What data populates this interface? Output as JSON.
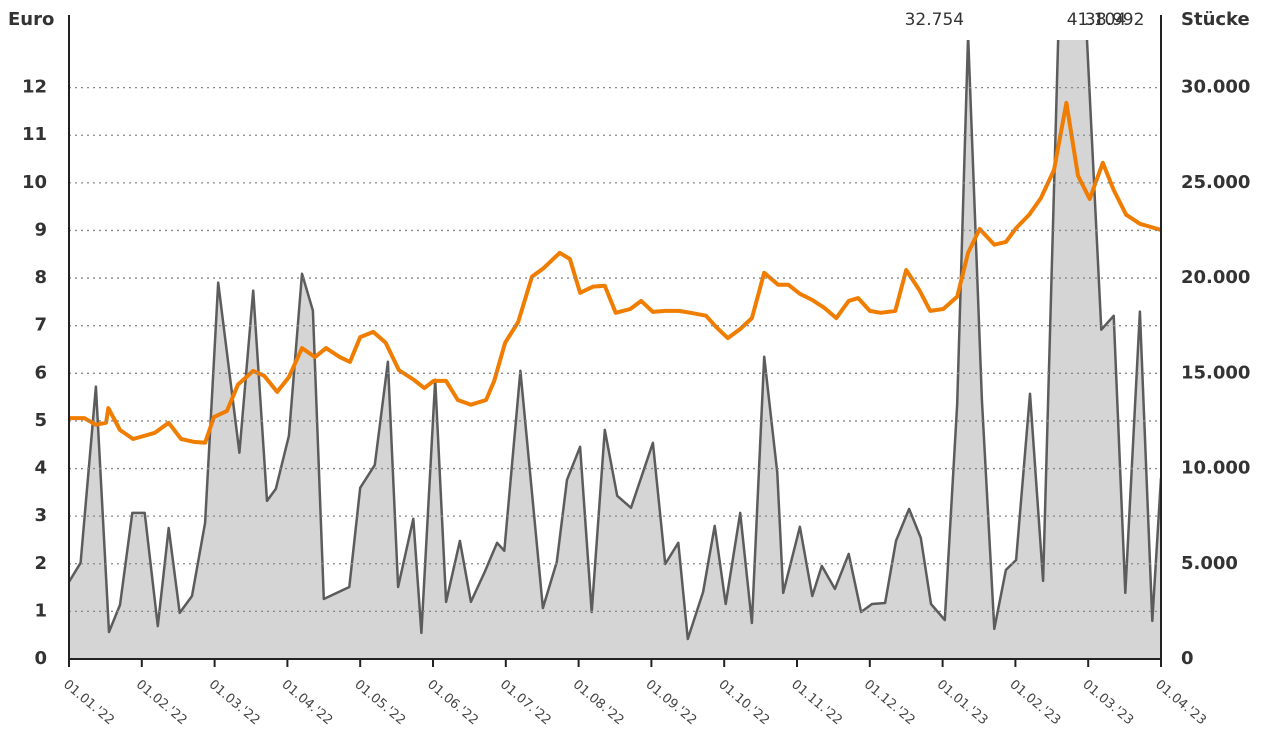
{
  "chart_data": {
    "type": "line-area",
    "y_label": "Euro",
    "y2_label": "Stücke",
    "xlim": [
      0,
      15
    ],
    "xticks": [
      {
        "value": 0,
        "label": "01.01.'22"
      },
      {
        "value": 1,
        "label": "01.02.'22"
      },
      {
        "value": 2,
        "label": "01.03.'22"
      },
      {
        "value": 3,
        "label": "01.04.'22"
      },
      {
        "value": 4,
        "label": "01.05.'22"
      },
      {
        "value": 5,
        "label": "01.06.'22"
      },
      {
        "value": 6,
        "label": "01.07.'22"
      },
      {
        "value": 7,
        "label": "01.08.'22"
      },
      {
        "value": 8,
        "label": "01.09.'22"
      },
      {
        "value": 9,
        "label": "01.10.'22"
      },
      {
        "value": 10,
        "label": "01.11.'22"
      },
      {
        "value": 11,
        "label": "01.12.'22"
      },
      {
        "value": 12,
        "label": "01.01.'23"
      },
      {
        "value": 13,
        "label": "01.02.'23"
      },
      {
        "value": 14,
        "label": "01.03.'23"
      },
      {
        "value": 15,
        "label": "01.04.'23"
      }
    ],
    "ylim": [
      0,
      13
    ],
    "yticks": [
      0,
      1,
      2,
      3,
      4,
      5,
      6,
      7,
      8,
      9,
      10,
      11,
      12
    ],
    "y2lim": [
      0,
      32500
    ],
    "y2ticks": [
      0,
      {
        "value": 5000,
        "label": "5.000"
      },
      {
        "value": 10000,
        "label": "10.000"
      },
      {
        "value": 15000,
        "label": "15.000"
      },
      {
        "value": 20000,
        "label": "20.000"
      },
      {
        "value": 25000,
        "label": "25.000"
      },
      {
        "value": 30000,
        "label": "30.000"
      }
    ],
    "grid": true,
    "series": [
      {
        "kind": "area",
        "axis": "y2",
        "color": "#5c5c5c",
        "fill": "#d5d5d5",
        "x": [
          0,
          0.16,
          0.37,
          0.55,
          0.7,
          0.87,
          1.04,
          1.22,
          1.37,
          1.52,
          1.69,
          1.87,
          2.05,
          2.34,
          2.53,
          2.72,
          2.84,
          3.02,
          3.2,
          3.35,
          3.5,
          3.85,
          4.0,
          4.2,
          4.38,
          4.52,
          4.73,
          4.84,
          5.03,
          5.18,
          5.37,
          5.52,
          5.71,
          5.88,
          5.98,
          6.2,
          6.51,
          6.7,
          6.84,
          7.02,
          7.18,
          7.36,
          7.53,
          7.72,
          8.02,
          8.19,
          8.37,
          8.5,
          8.71,
          8.87,
          9.02,
          9.22,
          9.38,
          9.55,
          9.73,
          9.81,
          10.04,
          10.21,
          10.34,
          10.52,
          10.71,
          10.88,
          11.03,
          11.21,
          11.36,
          11.54,
          11.7,
          11.84,
          12.03,
          12.2,
          12.35,
          12.54,
          12.71,
          12.87,
          13.01,
          13.2,
          13.38,
          13.65,
          13.9,
          14.18,
          14.35,
          14.51,
          14.71,
          14.88,
          15.0
        ],
        "values": [
          4050,
          5050,
          14300,
          1420,
          2840,
          7670,
          7670,
          1730,
          6880,
          2420,
          3310,
          7150,
          19760,
          10830,
          19340,
          8300,
          8930,
          11720,
          20230,
          18290,
          3150,
          3780,
          8990,
          10190,
          15610,
          3780,
          7360,
          1370,
          14660,
          3000,
          6200,
          3000,
          4570,
          6100,
          5680,
          15130,
          2680,
          5100,
          9410,
          11140,
          2470,
          12030,
          8570,
          7940,
          11350,
          4990,
          6100,
          1050,
          3520,
          6990,
          2890,
          7670,
          1890,
          15870,
          9770,
          3470,
          6940,
          3310,
          4890,
          3680,
          5520,
          2470,
          2890,
          2940,
          6200,
          7880,
          6360,
          2890,
          2050,
          13400,
          32754,
          13610,
          1580,
          4680,
          5200,
          13930,
          4100,
          41104,
          38992,
          17290,
          18020,
          3470,
          18240,
          2000,
          9510
        ],
        "annotations": [
          {
            "label": "32.754",
            "index": 70
          },
          {
            "label": "41.104",
            "index": 77
          },
          {
            "label": "38.992",
            "index": 78
          }
        ]
      },
      {
        "kind": "line",
        "axis": "y",
        "color": "#f07d00",
        "x": [
          0,
          0.21,
          0.37,
          0.51,
          0.54,
          0.7,
          0.88,
          1.18,
          1.37,
          1.54,
          1.72,
          1.87,
          1.99,
          2.17,
          2.32,
          2.53,
          2.68,
          2.86,
          3.02,
          3.2,
          3.38,
          3.53,
          3.72,
          3.86,
          4.0,
          4.18,
          4.35,
          4.53,
          4.74,
          4.88,
          5.01,
          5.18,
          5.34,
          5.52,
          5.73,
          5.84,
          5.99,
          6.17,
          6.36,
          6.52,
          6.74,
          6.88,
          7.02,
          7.2,
          7.36,
          7.51,
          7.71,
          7.86,
          8.02,
          8.19,
          8.38,
          8.54,
          8.75,
          8.89,
          9.05,
          9.22,
          9.38,
          9.55,
          9.74,
          9.88,
          10.04,
          10.21,
          10.38,
          10.54,
          10.71,
          10.84,
          11.0,
          11.15,
          11.35,
          11.5,
          11.68,
          11.83,
          12.01,
          12.2,
          12.35,
          12.51,
          12.71,
          12.87,
          13.01,
          13.19,
          13.35,
          13.53,
          13.7,
          13.86,
          14.02,
          14.2,
          14.35,
          14.52,
          14.71,
          15.0
        ],
        "values": [
          5.06,
          5.06,
          4.92,
          4.96,
          5.27,
          4.81,
          4.62,
          4.75,
          4.96,
          4.62,
          4.56,
          4.54,
          5.08,
          5.21,
          5.76,
          6.05,
          5.95,
          5.61,
          5.92,
          6.53,
          6.34,
          6.53,
          6.34,
          6.24,
          6.76,
          6.87,
          6.64,
          6.07,
          5.86,
          5.69,
          5.84,
          5.84,
          5.44,
          5.34,
          5.44,
          5.84,
          6.64,
          7.08,
          8.03,
          8.21,
          8.53,
          8.4,
          7.69,
          7.82,
          7.84,
          7.27,
          7.35,
          7.52,
          7.29,
          7.31,
          7.31,
          7.27,
          7.21,
          6.97,
          6.74,
          6.93,
          7.16,
          8.11,
          7.86,
          7.86,
          7.67,
          7.54,
          7.37,
          7.16,
          7.52,
          7.58,
          7.31,
          7.27,
          7.31,
          8.17,
          7.75,
          7.31,
          7.35,
          7.61,
          8.53,
          9.03,
          8.7,
          8.76,
          9.05,
          9.33,
          9.68,
          10.27,
          11.68,
          10.15,
          9.66,
          10.42,
          9.85,
          9.33,
          9.14,
          9.01
        ]
      }
    ]
  }
}
